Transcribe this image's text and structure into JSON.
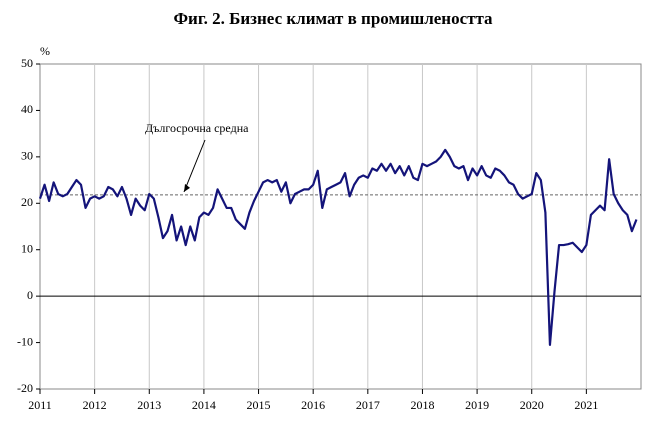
{
  "chart_data": {
    "type": "line",
    "title": "Фиг. 2. Бизнес климат в промишлеността",
    "y_label": "%",
    "categories": [
      "2011",
      null,
      null,
      null,
      null,
      null,
      null,
      null,
      null,
      null,
      null,
      null,
      "2012",
      null,
      null,
      null,
      null,
      null,
      null,
      null,
      null,
      null,
      null,
      null,
      "2013",
      null,
      null,
      null,
      null,
      null,
      null,
      null,
      null,
      null,
      null,
      null,
      "2014",
      null,
      null,
      null,
      null,
      null,
      null,
      null,
      null,
      null,
      null,
      null,
      "2015",
      null,
      null,
      null,
      null,
      null,
      null,
      null,
      null,
      null,
      null,
      null,
      "2016",
      null,
      null,
      null,
      null,
      null,
      null,
      null,
      null,
      null,
      null,
      null,
      "2017",
      null,
      null,
      null,
      null,
      null,
      null,
      null,
      null,
      null,
      null,
      null,
      "2018",
      null,
      null,
      null,
      null,
      null,
      null,
      null,
      null,
      null,
      null,
      null,
      "2019",
      null,
      null,
      null,
      null,
      null,
      null,
      null,
      null,
      null,
      null,
      null,
      "2020",
      null,
      null,
      null,
      null,
      null,
      null,
      null,
      null,
      null,
      null,
      null,
      "2021",
      null,
      null,
      null,
      null,
      null,
      null,
      null,
      null,
      null,
      null,
      null
    ],
    "series": [
      {
        "color": "#14147a",
        "values": [
          21,
          24,
          20.5,
          24.5,
          22,
          21.5,
          22,
          23.5,
          25,
          24,
          19,
          21,
          21.5,
          21,
          21.5,
          23.5,
          23,
          21.5,
          23.5,
          21,
          17.5,
          21,
          19.5,
          18.5,
          22,
          21,
          17,
          12.5,
          14,
          17.5,
          12,
          15,
          11,
          15,
          12,
          17,
          18,
          17.5,
          19,
          23,
          21,
          19,
          19,
          16.5,
          15.5,
          14.5,
          18,
          20.5,
          22.5,
          24.5,
          25,
          24.5,
          25,
          22.5,
          24.5,
          20,
          22,
          22.5,
          23,
          23,
          24,
          27,
          19,
          23,
          23.5,
          24,
          24.5,
          26.5,
          21.5,
          24,
          25.5,
          26,
          25.5,
          27.5,
          27,
          28.5,
          27,
          28.5,
          26.5,
          28,
          26,
          28,
          25.5,
          25,
          28.5,
          28,
          28.5,
          29,
          30,
          31.5,
          30,
          28,
          27.5,
          28,
          25,
          27.5,
          26,
          28,
          26,
          25.5,
          27.5,
          27,
          26,
          24.5,
          24,
          22,
          21,
          21.5,
          22,
          26.5,
          25,
          18,
          -10.5,
          1,
          11,
          11,
          11.2,
          11.5,
          10.5,
          9.5,
          11,
          17.5,
          18.5,
          19.5,
          18.5,
          29.5,
          22,
          20,
          18.5,
          17.5,
          14,
          16.5
        ]
      }
    ],
    "average": 21.8,
    "annotation": "Дългосрочна средна",
    "ylim": [
      -20,
      50
    ],
    "yticks": [
      -20,
      -10,
      0,
      10,
      20,
      30,
      40,
      50
    ],
    "grid": true
  }
}
